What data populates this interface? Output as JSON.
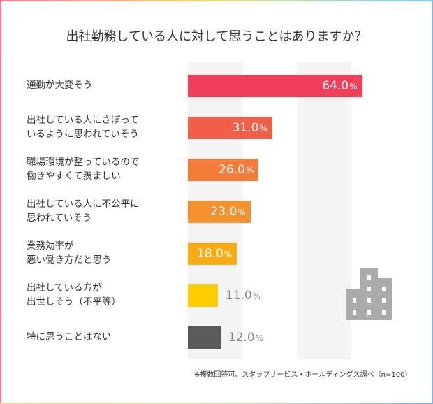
{
  "chart_data": {
    "type": "bar",
    "orientation": "horizontal",
    "title": "出社勤務している人に対して思うことはありますか？",
    "categories": [
      "通勤が大変そう",
      "出社している人にさぼって\nいるように思われていそう",
      "職場環境が整っているので\n働きやすくて羨ましい",
      "出社している人に不公平に\n思われていそう",
      "業務効率が\n悪い働き方だと思う",
      "出社している方が\n出世しそう（不平等）",
      "特に思うことはない"
    ],
    "values": [
      64.0,
      31.0,
      26.0,
      23.0,
      18.0,
      11.0,
      12.0
    ],
    "value_labels": [
      "64.0",
      "31.0",
      "26.0",
      "23.0",
      "18.0",
      "11.0",
      "12.0"
    ],
    "unit": "%",
    "colors": [
      "#f03e5a",
      "#f25f48",
      "#f47c3a",
      "#f6922e",
      "#f9ab14",
      "#ffcc00",
      "#5a5a5a"
    ],
    "xlim": [
      0,
      80
    ],
    "grid": "alternating vertical bands every 20",
    "legend": "none"
  },
  "footnote": "※複数回答可、スタッフサービス・ホールディングス調べ（n=100）",
  "icon": "office-building-icon"
}
